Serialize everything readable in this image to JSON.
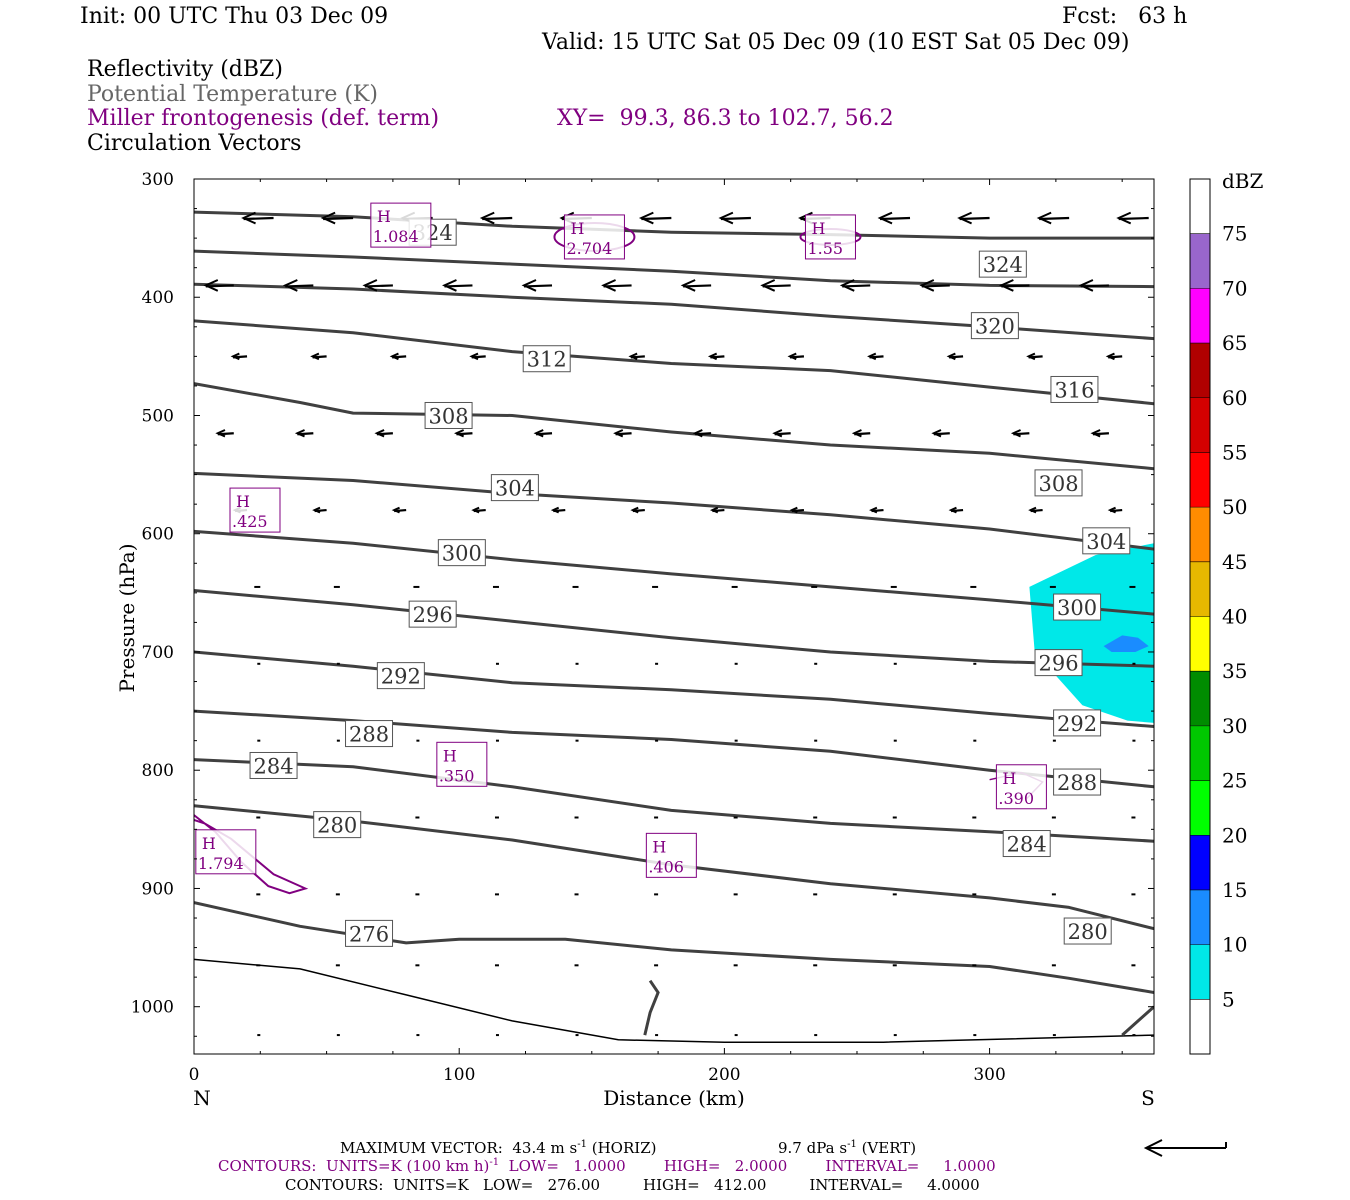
{
  "header": {
    "init": "Init: 00 UTC Thu 03 Dec 09",
    "fcst": "Fcst:   63 h",
    "valid": "Valid: 15 UTC Sat 05 Dec 09 (10 EST Sat 05 Dec 09)",
    "field1": "Reflectivity (dBZ)",
    "field2": "Potential Temperature (K)",
    "field3": "Miller frontogenesis (def. term)",
    "xy": "XY=  99.3, 86.3 to 102.7, 56.2",
    "field4": "Circulation Vectors"
  },
  "colors": {
    "theta": "#404040",
    "fronto": "#800080",
    "cyan": "#00e8e8",
    "blue": "#1a8cff"
  },
  "chart_data": {
    "type": "contour_cross_section",
    "xlabel": "Distance (km)",
    "ylabel": "Pressure (hPa)",
    "xlim": [
      0,
      362
    ],
    "ylim": [
      1040,
      300
    ],
    "x_ticks": [
      0,
      100,
      200,
      300
    ],
    "y_ticks": [
      300,
      400,
      500,
      600,
      700,
      800,
      900,
      1000
    ],
    "left_end_label": "N",
    "right_end_label": "S",
    "theta_labels": [
      {
        "v": "324",
        "x": 305,
        "p": 372
      },
      {
        "v": "324",
        "x": 90,
        "p": 345
      },
      {
        "v": "320",
        "x": 302,
        "p": 424
      },
      {
        "v": "316",
        "x": 332,
        "p": 478
      },
      {
        "v": "312",
        "x": 133,
        "p": 452
      },
      {
        "v": "308",
        "x": 96,
        "p": 500
      },
      {
        "v": "308",
        "x": 326,
        "p": 557
      },
      {
        "v": "304",
        "x": 121,
        "p": 561
      },
      {
        "v": "304",
        "x": 344,
        "p": 606
      },
      {
        "v": "300",
        "x": 101,
        "p": 616
      },
      {
        "v": "300",
        "x": 333,
        "p": 662
      },
      {
        "v": "296",
        "x": 90,
        "p": 668
      },
      {
        "v": "296",
        "x": 326,
        "p": 709
      },
      {
        "v": "292",
        "x": 78,
        "p": 720
      },
      {
        "v": "292",
        "x": 333,
        "p": 760
      },
      {
        "v": "288",
        "x": 66,
        "p": 769
      },
      {
        "v": "288",
        "x": 333,
        "p": 810
      },
      {
        "v": "284",
        "x": 30,
        "p": 796
      },
      {
        "v": "284",
        "x": 314,
        "p": 862
      },
      {
        "v": "280",
        "x": 54,
        "p": 846
      },
      {
        "v": "280",
        "x": 337,
        "p": 936
      },
      {
        "v": "276",
        "x": 66,
        "p": 938
      }
    ],
    "theta_lines": [
      [
        [
          0,
          328
        ],
        [
          60,
          332
        ],
        [
          120,
          340
        ],
        [
          180,
          345
        ],
        [
          240,
          347
        ],
        [
          300,
          350
        ],
        [
          362,
          350
        ]
      ],
      [
        [
          0,
          361
        ],
        [
          60,
          366
        ],
        [
          120,
          372
        ],
        [
          180,
          378
        ],
        [
          240,
          386
        ],
        [
          300,
          390
        ],
        [
          362,
          391
        ]
      ],
      [
        [
          0,
          389
        ],
        [
          60,
          393
        ],
        [
          120,
          400
        ],
        [
          180,
          406
        ],
        [
          240,
          416
        ],
        [
          300,
          425
        ],
        [
          362,
          435
        ]
      ],
      [
        [
          0,
          420
        ],
        [
          60,
          430
        ],
        [
          120,
          446
        ],
        [
          180,
          456
        ],
        [
          240,
          462
        ],
        [
          300,
          476
        ],
        [
          362,
          490
        ]
      ],
      [
        [
          0,
          473
        ],
        [
          40,
          489
        ],
        [
          60,
          498
        ],
        [
          120,
          500
        ],
        [
          180,
          514
        ],
        [
          240,
          525
        ],
        [
          300,
          532
        ],
        [
          362,
          545
        ]
      ],
      [
        [
          0,
          549
        ],
        [
          60,
          555
        ],
        [
          120,
          566
        ],
        [
          180,
          574
        ],
        [
          240,
          584
        ],
        [
          300,
          596
        ],
        [
          362,
          613
        ]
      ],
      [
        [
          0,
          598
        ],
        [
          60,
          608
        ],
        [
          120,
          622
        ],
        [
          180,
          634
        ],
        [
          240,
          645
        ],
        [
          300,
          656
        ],
        [
          362,
          668
        ]
      ],
      [
        [
          0,
          648
        ],
        [
          60,
          660
        ],
        [
          120,
          674
        ],
        [
          180,
          688
        ],
        [
          240,
          700
        ],
        [
          300,
          708
        ],
        [
          362,
          712
        ]
      ],
      [
        [
          0,
          700
        ],
        [
          60,
          712
        ],
        [
          120,
          726
        ],
        [
          180,
          732
        ],
        [
          240,
          740
        ],
        [
          300,
          752
        ],
        [
          362,
          763
        ]
      ],
      [
        [
          0,
          750
        ],
        [
          60,
          758
        ],
        [
          120,
          768
        ],
        [
          180,
          774
        ],
        [
          240,
          784
        ],
        [
          300,
          800
        ],
        [
          362,
          814
        ]
      ],
      [
        [
          0,
          791
        ],
        [
          60,
          797
        ],
        [
          120,
          814
        ],
        [
          180,
          834
        ],
        [
          240,
          845
        ],
        [
          300,
          852
        ],
        [
          362,
          860
        ]
      ],
      [
        [
          0,
          830
        ],
        [
          60,
          843
        ],
        [
          120,
          859
        ],
        [
          180,
          880
        ],
        [
          240,
          896
        ],
        [
          300,
          908
        ],
        [
          330,
          916
        ],
        [
          362,
          934
        ]
      ],
      [
        [
          0,
          912
        ],
        [
          40,
          932
        ],
        [
          80,
          946
        ],
        [
          100,
          943
        ],
        [
          140,
          943
        ],
        [
          180,
          952
        ],
        [
          240,
          960
        ],
        [
          300,
          966
        ],
        [
          330,
          976
        ],
        [
          362,
          988
        ]
      ]
    ],
    "thin_line": [
      [
        0,
        960
      ],
      [
        40,
        968
      ],
      [
        80,
        990
      ],
      [
        120,
        1012
      ],
      [
        160,
        1028
      ],
      [
        200,
        1030
      ],
      [
        260,
        1030
      ],
      [
        362,
        1024
      ]
    ],
    "thick_short": [
      [
        170,
        1024
      ],
      [
        172,
        1005
      ],
      [
        175,
        988
      ],
      [
        172,
        978
      ]
    ],
    "fronto_maxima": [
      {
        "v": ".425",
        "x": 23,
        "p": 580
      },
      {
        "v": "1.084",
        "x": 78,
        "p": 339
      },
      {
        "v": "2.704",
        "x": 151,
        "p": 349
      },
      {
        "v": "1.55",
        "x": 240,
        "p": 349
      },
      {
        "v": ".350",
        "x": 101,
        "p": 795
      },
      {
        "v": ".390",
        "x": 312,
        "p": 814
      },
      {
        "v": "1.794",
        "x": 12,
        "p": 869
      },
      {
        "v": ".406",
        "x": 180,
        "p": 872
      }
    ],
    "wind_vectors": [
      {
        "p": 333,
        "x": [
          0,
          30,
          60,
          90,
          120,
          150,
          180,
          210,
          240,
          270,
          300,
          330,
          360
        ],
        "len": 30
      },
      {
        "p": 390,
        "x": [
          15,
          45,
          75,
          105,
          135,
          165,
          195,
          225,
          255,
          285,
          315,
          345
        ],
        "len": 28
      },
      {
        "p": 450,
        "x": [
          20,
          50,
          80,
          110,
          140,
          170,
          200,
          230,
          260,
          290,
          320,
          350
        ],
        "len": 14
      },
      {
        "p": 515,
        "x": [
          15,
          45,
          75,
          105,
          135,
          165,
          195,
          225,
          255,
          285,
          315,
          345
        ],
        "len": 16
      },
      {
        "p": 580,
        "x": [
          20,
          50,
          80,
          110,
          140,
          170,
          200,
          230,
          260,
          290,
          320,
          350
        ],
        "len": 12
      },
      {
        "p": 645,
        "x": [
          25,
          55,
          85,
          115,
          145,
          175,
          205,
          235,
          265,
          295,
          325,
          355
        ],
        "len": 6
      },
      {
        "p": 710,
        "x": [
          25,
          55,
          85,
          115,
          145,
          175,
          205,
          235,
          265,
          295,
          325,
          355
        ],
        "len": 3
      },
      {
        "p": 775,
        "x": [
          25,
          55,
          85,
          115,
          145,
          175,
          205,
          235,
          265,
          295,
          325,
          355
        ],
        "len": 3
      },
      {
        "p": 840,
        "x": [
          25,
          55,
          85,
          115,
          145,
          175,
          205,
          235,
          265,
          295,
          325,
          355
        ],
        "len": 4
      },
      {
        "p": 905,
        "x": [
          25,
          55,
          85,
          115,
          145,
          175,
          205,
          235,
          265,
          295,
          325,
          355
        ],
        "len": 4
      },
      {
        "p": 965,
        "x": [
          25,
          55,
          85,
          115,
          145,
          175,
          205,
          235,
          265,
          295,
          325,
          355
        ],
        "len": 4
      },
      {
        "p": 1024,
        "x": [
          25,
          55,
          85,
          115,
          145,
          175,
          205,
          235,
          265,
          295,
          325,
          355
        ],
        "len": 3
      }
    ],
    "refl_area": {
      "cyan": [
        [
          315,
          645
        ],
        [
          340,
          618
        ],
        [
          362,
          608
        ],
        [
          362,
          760
        ],
        [
          352,
          758
        ],
        [
          335,
          745
        ],
        [
          317,
          700
        ]
      ],
      "blue": [
        [
          343,
          695
        ],
        [
          350,
          686
        ],
        [
          356,
          688
        ],
        [
          360,
          695
        ],
        [
          355,
          700
        ],
        [
          346,
          700
        ]
      ]
    },
    "colorbar": {
      "unit": "dBZ",
      "labels": [
        "5",
        "10",
        "15",
        "20",
        "25",
        "30",
        "35",
        "40",
        "45",
        "50",
        "55",
        "60",
        "65",
        "70",
        "75"
      ],
      "colors": [
        "#ffffff",
        "#00e8e8",
        "#1a8cff",
        "#0000ff",
        "#00ff00",
        "#00c800",
        "#008c00",
        "#ffff00",
        "#e6b800",
        "#ff8c00",
        "#ff0000",
        "#d40000",
        "#b00000",
        "#ff00ff",
        "#9966cc",
        "#ffffff"
      ]
    }
  },
  "footer": {
    "max_vector_label": "MAXIMUM VECTOR:  43.4 m s",
    "max_vector_unit_sup": "-1",
    "max_vector_horiz": " (HORIZ)",
    "vert_value": "9.7 dPa s",
    "vert_sup": "-1",
    "vert_label": " (VERT)",
    "contours_purple_a": "CONTOURS:  UNITS=K (100 km h)",
    "contours_purple_sup": "-1",
    "contours_purple_b": "  LOW=   1.0000        HIGH=   2.0000        INTERVAL=     1.0000",
    "contours_black": "CONTOURS:  UNITS=K   LOW=   276.00         HIGH=   412.00         INTERVAL=     4.0000"
  }
}
